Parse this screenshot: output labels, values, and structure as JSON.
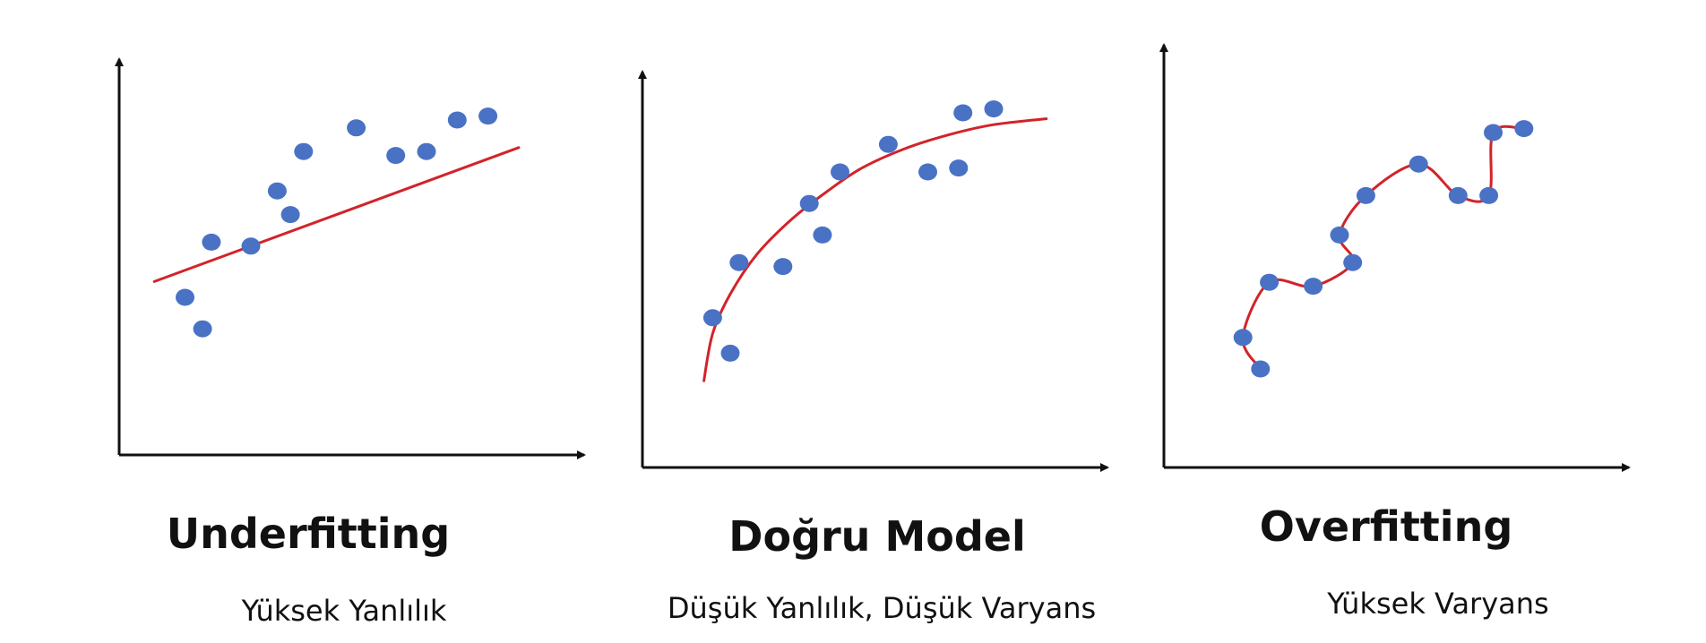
{
  "colors": {
    "axis": "#111111",
    "point": "#4a72c4",
    "fit_line": "#d2232a",
    "text": "#111111"
  },
  "chart_data": [
    {
      "type": "scatter",
      "title": "Underfitting",
      "subtitle": "Yüksek Yanlılık",
      "xlabel": "",
      "ylabel": "",
      "xlim": [
        0,
        10
      ],
      "ylim": [
        0,
        10
      ],
      "grid": false,
      "fit": "linear",
      "points": [
        {
          "x": 1.5,
          "y": 4.0
        },
        {
          "x": 1.9,
          "y": 3.2
        },
        {
          "x": 2.1,
          "y": 5.4
        },
        {
          "x": 3.0,
          "y": 5.3
        },
        {
          "x": 3.6,
          "y": 6.7
        },
        {
          "x": 3.9,
          "y": 6.1
        },
        {
          "x": 4.2,
          "y": 7.7
        },
        {
          "x": 5.4,
          "y": 8.3
        },
        {
          "x": 6.3,
          "y": 7.6
        },
        {
          "x": 7.0,
          "y": 7.7
        },
        {
          "x": 7.7,
          "y": 8.5
        },
        {
          "x": 8.4,
          "y": 8.6
        }
      ],
      "fit_line": [
        {
          "x": 0.8,
          "y": 4.4
        },
        {
          "x": 9.1,
          "y": 7.8
        }
      ]
    },
    {
      "type": "scatter",
      "title": "Doğru Model",
      "subtitle": "Düşük Yanlılık, Düşük Varyans",
      "xlabel": "",
      "ylabel": "",
      "xlim": [
        0,
        10
      ],
      "ylim": [
        0,
        10
      ],
      "grid": false,
      "fit": "curve",
      "points": [
        {
          "x": 1.6,
          "y": 3.8
        },
        {
          "x": 2.0,
          "y": 2.9
        },
        {
          "x": 2.2,
          "y": 5.2
        },
        {
          "x": 3.2,
          "y": 5.1
        },
        {
          "x": 3.8,
          "y": 6.7
        },
        {
          "x": 4.1,
          "y": 5.9
        },
        {
          "x": 4.5,
          "y": 7.5
        },
        {
          "x": 5.6,
          "y": 8.2
        },
        {
          "x": 6.5,
          "y": 7.5
        },
        {
          "x": 7.2,
          "y": 7.6
        },
        {
          "x": 7.3,
          "y": 9.0
        },
        {
          "x": 8.0,
          "y": 9.1
        }
      ],
      "fit_line": [
        {
          "x": 1.4,
          "y": 2.2
        },
        {
          "x": 1.6,
          "y": 3.4
        },
        {
          "x": 2.0,
          "y": 4.4
        },
        {
          "x": 2.6,
          "y": 5.4
        },
        {
          "x": 3.4,
          "y": 6.3
        },
        {
          "x": 4.2,
          "y": 7.0
        },
        {
          "x": 5.0,
          "y": 7.6
        },
        {
          "x": 6.0,
          "y": 8.1
        },
        {
          "x": 7.0,
          "y": 8.45
        },
        {
          "x": 8.0,
          "y": 8.7
        },
        {
          "x": 9.2,
          "y": 8.85
        }
      ]
    },
    {
      "type": "scatter",
      "title": "Overfitting",
      "subtitle": "Yüksek Varyans",
      "xlabel": "",
      "ylabel": "",
      "xlim": [
        0,
        10
      ],
      "ylim": [
        0,
        10
      ],
      "grid": false,
      "fit": "interpolating",
      "points": [
        {
          "x": 1.8,
          "y": 3.3
        },
        {
          "x": 2.2,
          "y": 2.5
        },
        {
          "x": 2.4,
          "y": 4.7
        },
        {
          "x": 3.4,
          "y": 4.6
        },
        {
          "x": 4.0,
          "y": 5.9
        },
        {
          "x": 4.3,
          "y": 5.2
        },
        {
          "x": 4.6,
          "y": 6.9
        },
        {
          "x": 5.8,
          "y": 7.7
        },
        {
          "x": 6.7,
          "y": 6.9
        },
        {
          "x": 7.4,
          "y": 6.9
        },
        {
          "x": 7.5,
          "y": 8.5
        },
        {
          "x": 8.2,
          "y": 8.6
        }
      ],
      "fit_line": [
        {
          "x": 2.2,
          "y": 2.5
        },
        {
          "x": 1.8,
          "y": 3.3
        },
        {
          "x": 2.4,
          "y": 4.7
        },
        {
          "x": 3.4,
          "y": 4.6
        },
        {
          "x": 4.3,
          "y": 5.2
        },
        {
          "x": 4.0,
          "y": 5.9
        },
        {
          "x": 4.6,
          "y": 6.9
        },
        {
          "x": 5.8,
          "y": 7.7
        },
        {
          "x": 6.7,
          "y": 6.9
        },
        {
          "x": 7.4,
          "y": 6.9
        },
        {
          "x": 7.5,
          "y": 8.5
        },
        {
          "x": 8.2,
          "y": 8.6
        }
      ]
    }
  ]
}
